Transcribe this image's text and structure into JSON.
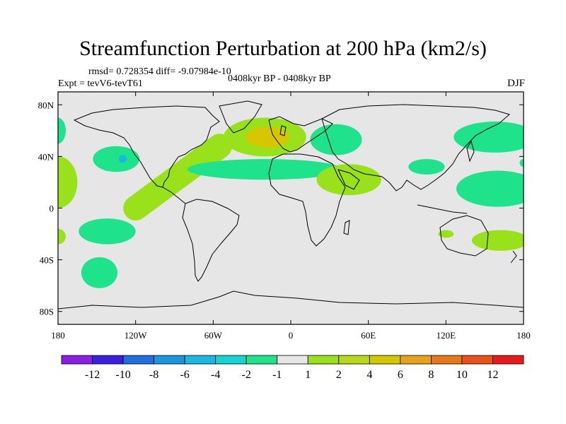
{
  "title": "Streamfunction Perturbation at 200 hPa (km2/s)",
  "stats": "rmsd= 0.728354 diff= -9.07984e-10",
  "experiment": "Expt = tevV6-tevT61",
  "period": "0408kyr BP - 0408kyr BP",
  "season": "DJF",
  "map": {
    "background": "#e6e6e6",
    "lon_range": [
      -180,
      180
    ],
    "lat_range": [
      -90,
      90
    ],
    "lon_ticks": [
      {
        "value": -180,
        "label": "180"
      },
      {
        "value": -120,
        "label": "120W"
      },
      {
        "value": -60,
        "label": "60W"
      },
      {
        "value": 0,
        "label": "0"
      },
      {
        "value": 60,
        "label": "60E"
      },
      {
        "value": 120,
        "label": "120E"
      },
      {
        "value": 180,
        "label": "180"
      }
    ],
    "lat_ticks": [
      {
        "value": 80,
        "label": "80N"
      },
      {
        "value": 40,
        "label": "40N"
      },
      {
        "value": 0,
        "label": "0"
      },
      {
        "value": -40,
        "label": "40S"
      },
      {
        "value": -80,
        "label": "80S"
      }
    ],
    "anomalies": [
      {
        "lon": -180,
        "lat": 20,
        "rx": 15,
        "ry": 20,
        "color": "#99e11a"
      },
      {
        "lon": -180,
        "lat": -22,
        "rx": 6,
        "ry": 6,
        "color": "#99e11a"
      },
      {
        "lon": -180,
        "lat": 60,
        "rx": 6,
        "ry": 10,
        "color": "#1ee38a"
      },
      {
        "lon": -135,
        "lat": 38,
        "rx": 18,
        "ry": 10,
        "color": "#1ee38a"
      },
      {
        "lon": -142,
        "lat": -18,
        "rx": 22,
        "ry": 10,
        "color": "#1ee38a"
      },
      {
        "lon": -148,
        "lat": -50,
        "rx": 14,
        "ry": 12,
        "color": "#1ee38a"
      },
      {
        "lon": -20,
        "lat": 55,
        "rx": 32,
        "ry": 15,
        "color": "#99e11a"
      },
      {
        "lon": -18,
        "lat": 55,
        "rx": 17,
        "ry": 8,
        "color": "#d6c600"
      },
      {
        "lon": -20,
        "lat": 30,
        "rx": 60,
        "ry": 8,
        "color": "#1ee38a"
      },
      {
        "lon": 35,
        "lat": 53,
        "rx": 20,
        "ry": 12,
        "color": "#1ee38a"
      },
      {
        "lon": 45,
        "lat": 22,
        "rx": 25,
        "ry": 12,
        "color": "#99e11a"
      },
      {
        "lon": 105,
        "lat": 32,
        "rx": 14,
        "ry": 6,
        "color": "#1ee38a"
      },
      {
        "lon": 158,
        "lat": 55,
        "rx": 32,
        "ry": 12,
        "color": "#1ee38a"
      },
      {
        "lon": 160,
        "lat": 15,
        "rx": 32,
        "ry": 14,
        "color": "#1ee38a"
      },
      {
        "lon": 162,
        "lat": -25,
        "rx": 22,
        "ry": 8,
        "color": "#99e11a"
      },
      {
        "lon": 120,
        "lat": -20,
        "rx": 6,
        "ry": 3,
        "color": "#99e11a"
      },
      {
        "lon": 180,
        "lat": 35,
        "rx": 3,
        "ry": 3,
        "color": "#1ee38a"
      },
      {
        "lon": -130,
        "lat": 38,
        "rx": 3,
        "ry": 3,
        "color": "#1ab8e0"
      }
    ],
    "ridge": {
      "lon1": -120,
      "lat1": 0,
      "lon2": -55,
      "lat2": 48,
      "width": 12,
      "color": "#99e11a"
    }
  },
  "colorbar": {
    "colors": [
      "#8b1ee6",
      "#3a1fe0",
      "#1f6fe0",
      "#1a96e0",
      "#1ab8e0",
      "#16d2d0",
      "#1ee38a",
      "#e6e6e6",
      "#99e11a",
      "#b9d81a",
      "#d6c600",
      "#e6a31a",
      "#e6781a",
      "#e6521a",
      "#e61a1a"
    ],
    "labels": [
      "-12",
      "-10",
      "-8",
      "-6",
      "-4",
      "-2",
      "-1",
      "1",
      "2",
      "4",
      "6",
      "8",
      "10",
      "12"
    ]
  }
}
